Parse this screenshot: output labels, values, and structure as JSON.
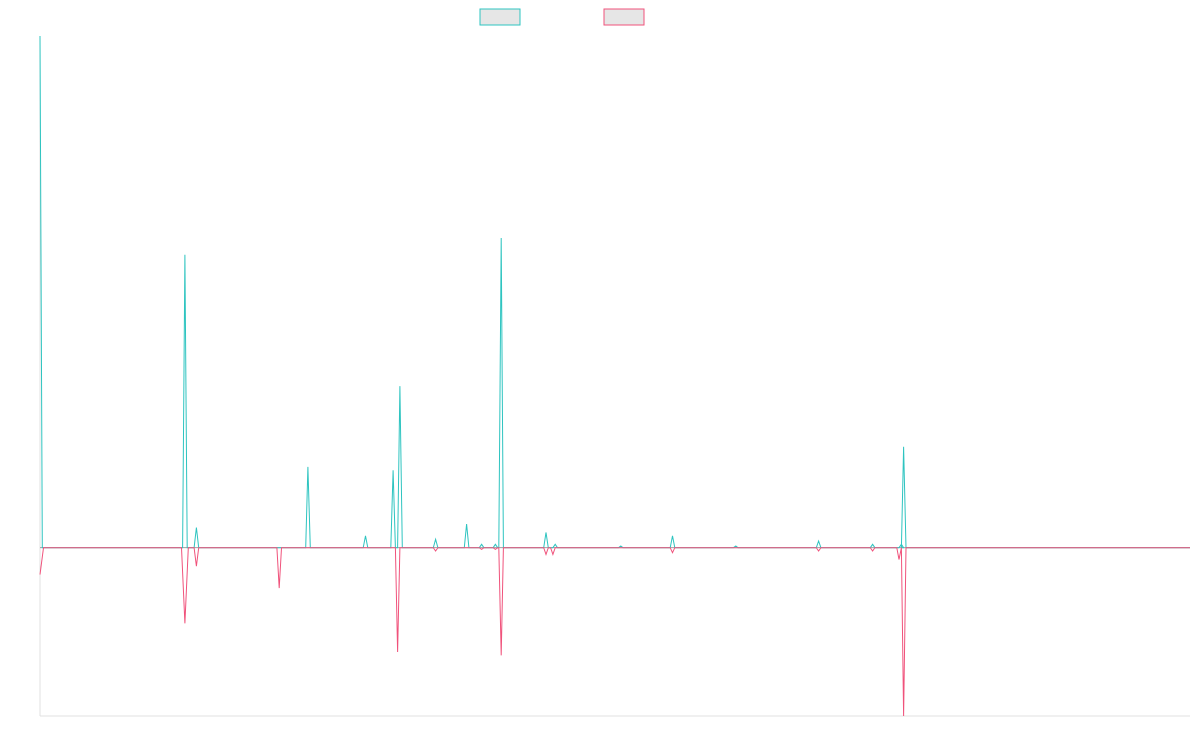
{
  "colors": {
    "series_a": "#2ec4c0",
    "series_b": "#f0527b",
    "legend_fill": "#e6e6e6",
    "axis": "#e0e0e0",
    "zero_line": "#a0a0a0"
  },
  "chart_data": {
    "type": "line",
    "title": "",
    "xlabel": "",
    "ylabel": "",
    "grid": false,
    "legend_position": "top-center",
    "xlim": [
      0,
      100
    ],
    "ylim": [
      -5,
      15.2
    ],
    "series": [
      {
        "color": "#2ec4c0",
        "points": [
          [
            0,
            15.2
          ],
          [
            0.2,
            0
          ],
          [
            12.4,
            0
          ],
          [
            12.6,
            8.7
          ],
          [
            12.8,
            0
          ],
          [
            13.4,
            0
          ],
          [
            13.6,
            0.6
          ],
          [
            13.8,
            0
          ],
          [
            23.1,
            0
          ],
          [
            23.3,
            2.4
          ],
          [
            23.5,
            0
          ],
          [
            28.1,
            0
          ],
          [
            28.3,
            0.35
          ],
          [
            28.5,
            0
          ],
          [
            30.5,
            0
          ],
          [
            30.7,
            2.3
          ],
          [
            30.9,
            0
          ],
          [
            31.1,
            0
          ],
          [
            31.3,
            4.8
          ],
          [
            31.5,
            0
          ],
          [
            34.2,
            0
          ],
          [
            34.4,
            0.25
          ],
          [
            34.6,
            0
          ],
          [
            36.9,
            0
          ],
          [
            37.1,
            0.7
          ],
          [
            37.3,
            0
          ],
          [
            38.2,
            0
          ],
          [
            38.4,
            0.1
          ],
          [
            38.6,
            0
          ],
          [
            39.4,
            0
          ],
          [
            39.6,
            0.1
          ],
          [
            39.8,
            0
          ],
          [
            39.9,
            0
          ],
          [
            40.1,
            9.2
          ],
          [
            40.3,
            0
          ],
          [
            43.8,
            0
          ],
          [
            44.0,
            0.45
          ],
          [
            44.2,
            0
          ],
          [
            44.6,
            0
          ],
          [
            44.8,
            0.1
          ],
          [
            45.0,
            0
          ],
          [
            50.3,
            0
          ],
          [
            50.5,
            0.05
          ],
          [
            50.7,
            0
          ],
          [
            54.8,
            0
          ],
          [
            55.0,
            0.35
          ],
          [
            55.2,
            0
          ],
          [
            60.3,
            0
          ],
          [
            60.5,
            0.05
          ],
          [
            60.7,
            0
          ],
          [
            67.5,
            0
          ],
          [
            67.7,
            0.2
          ],
          [
            67.9,
            0
          ],
          [
            72.2,
            0
          ],
          [
            72.4,
            0.1
          ],
          [
            72.6,
            0
          ],
          [
            74.7,
            0
          ],
          [
            74.9,
            0.1
          ],
          [
            75.1,
            0
          ],
          [
            74.9,
            0
          ],
          [
            75.1,
            3.0
          ],
          [
            75.3,
            0
          ],
          [
            100,
            0
          ]
        ]
      },
      {
        "color": "#f0527b",
        "points": [
          [
            0,
            -0.8
          ],
          [
            0.3,
            0
          ],
          [
            12.3,
            0
          ],
          [
            12.6,
            -2.25
          ],
          [
            12.9,
            0
          ],
          [
            13.4,
            0
          ],
          [
            13.6,
            -0.55
          ],
          [
            13.8,
            0
          ],
          [
            20.6,
            0
          ],
          [
            20.8,
            -1.2
          ],
          [
            21.0,
            0
          ],
          [
            30.9,
            0
          ],
          [
            31.1,
            -3.1
          ],
          [
            31.3,
            0
          ],
          [
            34.2,
            0
          ],
          [
            34.4,
            -0.1
          ],
          [
            34.6,
            0
          ],
          [
            38.2,
            0
          ],
          [
            38.4,
            -0.05
          ],
          [
            38.6,
            0
          ],
          [
            39.4,
            0
          ],
          [
            39.6,
            -0.05
          ],
          [
            39.8,
            0
          ],
          [
            39.9,
            0
          ],
          [
            40.1,
            -3.2
          ],
          [
            40.3,
            0
          ],
          [
            43.8,
            0
          ],
          [
            44.0,
            -0.2
          ],
          [
            44.2,
            0
          ],
          [
            44.4,
            0
          ],
          [
            44.6,
            -0.2
          ],
          [
            44.8,
            0
          ],
          [
            54.8,
            0
          ],
          [
            55.0,
            -0.15
          ],
          [
            55.2,
            0
          ],
          [
            67.5,
            0
          ],
          [
            67.7,
            -0.1
          ],
          [
            67.9,
            0
          ],
          [
            72.2,
            0
          ],
          [
            72.4,
            -0.1
          ],
          [
            72.6,
            0
          ],
          [
            74.5,
            0
          ],
          [
            74.7,
            -0.35
          ],
          [
            74.9,
            0
          ],
          [
            74.9,
            0
          ],
          [
            75.1,
            -5.0
          ],
          [
            75.3,
            0
          ],
          [
            100,
            0
          ]
        ]
      }
    ]
  }
}
